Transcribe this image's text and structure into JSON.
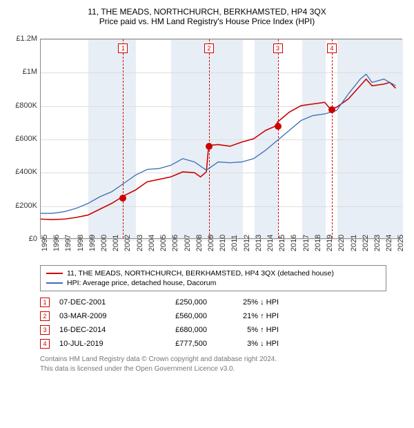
{
  "title": "11, THE MEADS, NORTHCHURCH, BERKHAMSTED, HP4 3QX",
  "subtitle": "Price paid vs. HM Land Registry's House Price Index (HPI)",
  "chart": {
    "type": "line",
    "xlim": [
      1995,
      2025.5
    ],
    "ylim": [
      0,
      1200000
    ],
    "ytick_step": 200000,
    "yticks": [
      "£0",
      "£200K",
      "£400K",
      "£600K",
      "£800K",
      "£1M",
      "£1.2M"
    ],
    "xticks": [
      1995,
      1996,
      1997,
      1998,
      1999,
      2000,
      2001,
      2002,
      2003,
      2004,
      2005,
      2006,
      2007,
      2008,
      2009,
      2010,
      2011,
      2012,
      2013,
      2014,
      2015,
      2016,
      2017,
      2018,
      2019,
      2020,
      2021,
      2022,
      2023,
      2024,
      2025
    ],
    "background_color": "#ffffff",
    "band_color": "#e8eef5",
    "grid_color": "#dddddd",
    "bands": [
      [
        1999,
        2003
      ],
      [
        2006,
        2012
      ],
      [
        2013,
        2015
      ],
      [
        2017,
        2019
      ],
      [
        2020,
        2025.5
      ]
    ],
    "series": [
      {
        "name": "property",
        "color": "#cc0000",
        "width": 1.6,
        "points": [
          [
            1995,
            115
          ],
          [
            1996,
            112
          ],
          [
            1997,
            115
          ],
          [
            1998,
            125
          ],
          [
            1999,
            140
          ],
          [
            2000,
            175
          ],
          [
            2001,
            210
          ],
          [
            2001.9,
            250
          ],
          [
            2002,
            255
          ],
          [
            2003,
            290
          ],
          [
            2004,
            340
          ],
          [
            2005,
            355
          ],
          [
            2006,
            370
          ],
          [
            2007,
            400
          ],
          [
            2008,
            395
          ],
          [
            2008.5,
            370
          ],
          [
            2009,
            400
          ],
          [
            2009.2,
            560
          ],
          [
            2010,
            565
          ],
          [
            2011,
            555
          ],
          [
            2012,
            580
          ],
          [
            2013,
            600
          ],
          [
            2014,
            650
          ],
          [
            2014.95,
            680
          ],
          [
            2015,
            700
          ],
          [
            2016,
            760
          ],
          [
            2017,
            800
          ],
          [
            2018,
            810
          ],
          [
            2019,
            820
          ],
          [
            2019.5,
            778
          ],
          [
            2020,
            790
          ],
          [
            2021,
            840
          ],
          [
            2022,
            920
          ],
          [
            2022.5,
            960
          ],
          [
            2023,
            920
          ],
          [
            2024,
            930
          ],
          [
            2024.5,
            940
          ],
          [
            2025,
            905
          ]
        ]
      },
      {
        "name": "hpi",
        "color": "#3b6db3",
        "width": 1.3,
        "points": [
          [
            1995,
            150
          ],
          [
            1996,
            150
          ],
          [
            1997,
            160
          ],
          [
            1998,
            180
          ],
          [
            1999,
            210
          ],
          [
            2000,
            250
          ],
          [
            2001,
            280
          ],
          [
            2002,
            330
          ],
          [
            2003,
            380
          ],
          [
            2004,
            415
          ],
          [
            2005,
            420
          ],
          [
            2006,
            440
          ],
          [
            2007,
            480
          ],
          [
            2008,
            460
          ],
          [
            2009,
            410
          ],
          [
            2010,
            460
          ],
          [
            2011,
            455
          ],
          [
            2012,
            460
          ],
          [
            2013,
            480
          ],
          [
            2014,
            530
          ],
          [
            2015,
            590
          ],
          [
            2016,
            650
          ],
          [
            2017,
            710
          ],
          [
            2018,
            740
          ],
          [
            2019,
            750
          ],
          [
            2020,
            770
          ],
          [
            2021,
            870
          ],
          [
            2022,
            960
          ],
          [
            2022.5,
            990
          ],
          [
            2023,
            940
          ],
          [
            2024,
            960
          ],
          [
            2025,
            920
          ]
        ]
      }
    ],
    "markers": [
      {
        "n": "1",
        "x": 2001.93,
        "y": 250000
      },
      {
        "n": "2",
        "x": 2009.17,
        "y": 560000
      },
      {
        "n": "3",
        "x": 2014.96,
        "y": 680000
      },
      {
        "n": "4",
        "x": 2019.52,
        "y": 777500
      }
    ]
  },
  "legend": [
    {
      "color": "#cc0000",
      "label": "11, THE MEADS, NORTHCHURCH, BERKHAMSTED, HP4 3QX (detached house)"
    },
    {
      "color": "#3b6db3",
      "label": "HPI: Average price, detached house, Dacorum"
    }
  ],
  "transactions": [
    {
      "n": "1",
      "date": "07-DEC-2001",
      "price": "£250,000",
      "diff": "25% ↓ HPI"
    },
    {
      "n": "2",
      "date": "03-MAR-2009",
      "price": "£560,000",
      "diff": "21% ↑ HPI"
    },
    {
      "n": "3",
      "date": "16-DEC-2014",
      "price": "£680,000",
      "diff": "5% ↑ HPI"
    },
    {
      "n": "4",
      "date": "10-JUL-2019",
      "price": "£777,500",
      "diff": "3% ↓ HPI"
    }
  ],
  "footer_line1": "Contains HM Land Registry data © Crown copyright and database right 2024.",
  "footer_line2": "This data is licensed under the Open Government Licence v3.0."
}
